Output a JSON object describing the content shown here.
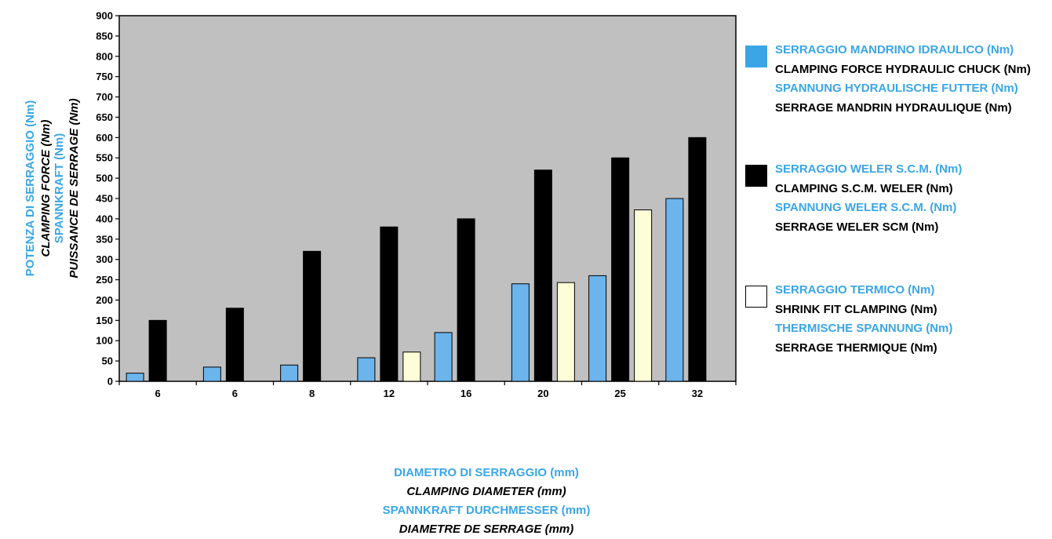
{
  "chart_data": {
    "type": "bar",
    "categories": [
      "6",
      "6",
      "8",
      "12",
      "16",
      "20",
      "25",
      "32"
    ],
    "series": [
      {
        "name": "SERRAGGIO MANDRINO IDRAULICO (Nm)",
        "color": "#6cb4ec",
        "values": [
          20,
          35,
          40,
          58,
          120,
          240,
          260,
          450
        ]
      },
      {
        "name": "SERRAGGIO WELER S.C.M. (Nm)",
        "color": "#000000",
        "values": [
          150,
          180,
          320,
          380,
          400,
          520,
          550,
          600
        ]
      },
      {
        "name": "SERRAGGIO TERMICO  (Nm)",
        "color": "#fdfdd8",
        "values": [
          null,
          null,
          null,
          72,
          null,
          243,
          422,
          null
        ]
      }
    ],
    "ylim": [
      0,
      900
    ],
    "yticks": [
      0,
      50,
      100,
      150,
      200,
      250,
      300,
      350,
      400,
      450,
      500,
      550,
      600,
      650,
      700,
      750,
      800,
      850,
      900
    ],
    "ylabel_lines": [
      "POTENZA DI SERRAGGIO (Nm)",
      "CLAMPING FORCE (Nm)",
      "SPANNKRAFT (Nm)",
      "PUISSANCE DE SERRAGE (Nm)"
    ],
    "xlabel_lines": [
      "DIAMETRO DI SERRAGGIO (mm)",
      "CLAMPING DIAMETER (mm)",
      "SPANNKRAFT DURCHMESSER (mm)",
      "DIAMETRE DE SERRAGE (mm)"
    ],
    "legend_position": "right",
    "plot_background": "#c0c0c0",
    "grid": false
  },
  "legend": [
    {
      "swatch_color": "#3aa6e6",
      "lines": [
        "SERRAGGIO MANDRINO IDRAULICO (Nm)",
        "CLAMPING FORCE HYDRAULIC CHUCK (Nm)",
        "SPANNUNG HYDRAULISCHE FUTTER (Nm)",
        "SERRAGE MANDRIN HYDRAULIQUE (Nm)"
      ]
    },
    {
      "swatch_color": "#000000",
      "lines": [
        "SERRAGGIO WELER S.C.M. (Nm)",
        "CLAMPING S.C.M. WELER (Nm)",
        "SPANNUNG WELER S.C.M. (Nm)",
        "SERRAGE WELER SCM (Nm)"
      ]
    },
    {
      "swatch_color": "#ffffff",
      "lines": [
        "SERRAGGIO TERMICO  (Nm)",
        "SHRINK FIT CLAMPING (Nm)",
        "THERMISCHE SPANNUNG (Nm)",
        "SERRAGE THERMIQUE (Nm)"
      ]
    }
  ],
  "colors": {
    "label_blue": "#3aa6e6",
    "label_black": "#000000"
  }
}
